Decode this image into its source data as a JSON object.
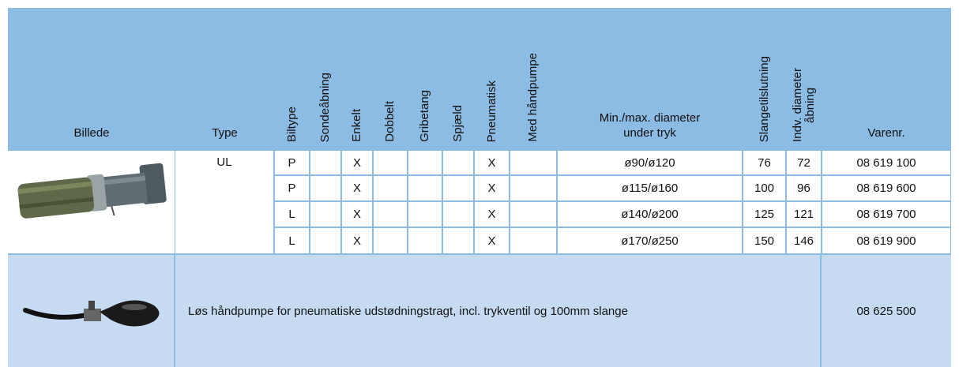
{
  "table": {
    "columns": [
      "Billede",
      "Type",
      "Biltype",
      "Sondeåbning",
      "Enkelt",
      "Dobbelt",
      "Gribetang",
      "Spjæld",
      "Pneumatisk",
      "Med håndpumpe",
      [
        "Min./max. diameter",
        "under tryk"
      ],
      "Slangetilslutning",
      [
        "Indv. diameter",
        "åbning"
      ],
      "Varenr."
    ],
    "rows": [
      [
        null,
        "UL",
        "P",
        null,
        "X",
        null,
        null,
        null,
        "X",
        null,
        "ø90/ø120",
        76,
        72,
        "08 619 100"
      ],
      [
        null,
        null,
        "P",
        null,
        "X",
        null,
        null,
        null,
        "X",
        null,
        "ø115/ø160",
        100,
        96,
        "08 619 600"
      ],
      [
        null,
        null,
        "L",
        null,
        "X",
        null,
        null,
        null,
        "X",
        null,
        "ø140/ø200",
        125,
        121,
        "08 619 700"
      ],
      [
        null,
        null,
        "L",
        null,
        "X",
        null,
        null,
        null,
        "X",
        null,
        "ø170/ø250",
        150,
        146,
        "08 619 900"
      ]
    ],
    "accessory": {
      "description": "Løs håndpumpe for pneumatiske udstødningstragt, incl. trykventil og 100mm slange",
      "varenr": "08 625 500"
    }
  }
}
